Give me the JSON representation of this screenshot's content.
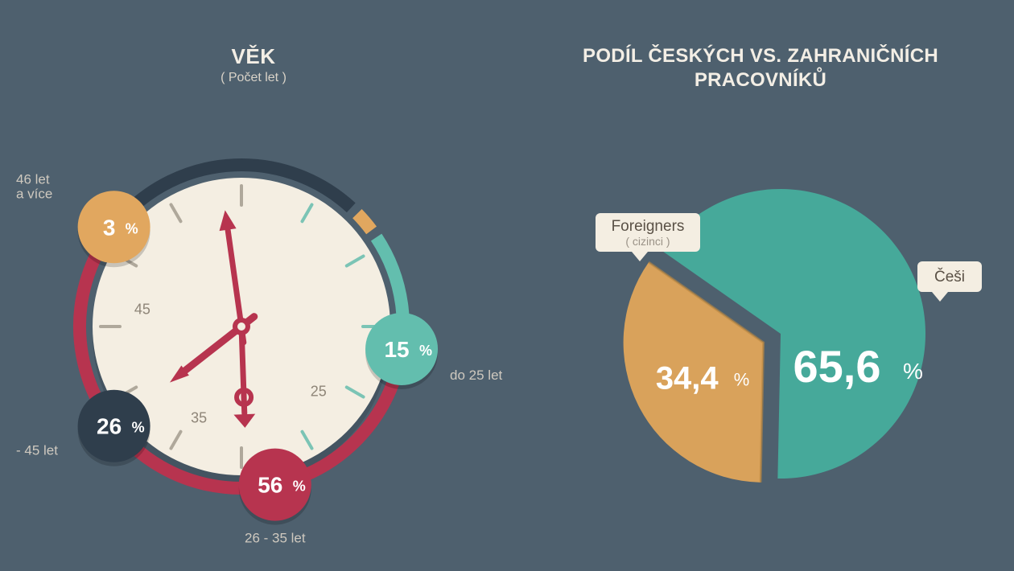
{
  "background_color": "#4e606e",
  "text_color_light": "#f3eee5",
  "age_chart": {
    "type": "radial-gauge",
    "title": "VĚK",
    "subtitle": "( Počet let )",
    "face_color": "#f4eee2",
    "face_shadow": "#3e4d59",
    "tick_color": "#9e978a",
    "tick_gradient_accent": "#6fc0b1",
    "hand_color": "#b7344f",
    "hand_shadow": "#8f2a3f",
    "ring_gap_color": "#4e606e",
    "tick_labels": [
      "25",
      "35",
      "45"
    ],
    "segments": [
      {
        "label": "do 25 let",
        "value": 15,
        "display": "15",
        "color": "#63beae",
        "badge_angle_deg": 90
      },
      {
        "label": "26 - 35 let",
        "value": 56,
        "display": "56",
        "color": "#b7344f",
        "badge_angle_deg": 165
      },
      {
        "label": "- 45 let",
        "value": 26,
        "display": "26",
        "color": "#2f3e4c",
        "badge_angle_deg": 230
      },
      {
        "label": "46 let\na více",
        "value": 3,
        "display": "3",
        "color": "#e1a75f",
        "badge_angle_deg": 305
      }
    ],
    "axis_label_color": "#cfc9bf",
    "inner_tick_label_color": "#8e8578"
  },
  "share_chart": {
    "type": "pie",
    "title_line1": "PODÍL ČESKÝCH VS. ZAHRANIČNÍCH",
    "title_line2": "PRACOVNÍKŮ",
    "background_color": "#4e606e",
    "callout_bg": "#f4eee2",
    "callout_text_color": "#5a5146",
    "slices": [
      {
        "label": "Češi",
        "sublabel": "",
        "value": 65.6,
        "display": "65,6",
        "color": "#46a99a"
      },
      {
        "label": "Foreigners",
        "sublabel": "( cizinci )",
        "value": 34.4,
        "display": "34,4",
        "color": "#d9a25b"
      }
    ],
    "value_fontsize_large": 56,
    "value_fontsize_small": 40,
    "pct_fontsize_large": 28,
    "pct_fontsize_small": 22
  }
}
